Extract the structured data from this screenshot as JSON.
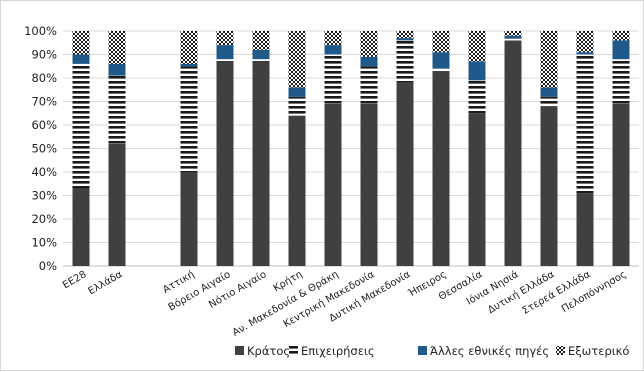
{
  "colors": {
    "krátos": "#404040",
    "epicheiriseis": "#1a1a1a",
    "alles": "#1f5a8a",
    "exoteriko": "#1a1a1a",
    "grid": "#d9d9d9",
    "axis": "#bfbfbf"
  },
  "chart_data": {
    "type": "bar",
    "stacked": true,
    "ylim": [
      0,
      100
    ],
    "yticks": [
      "0%",
      "10%",
      "20%",
      "30%",
      "40%",
      "50%",
      "60%",
      "70%",
      "80%",
      "90%",
      "100%"
    ],
    "grid": true,
    "legend_position": "bottom-right",
    "categories": [
      "ΕΕ28",
      "Ελλάδα",
      "",
      "Αττική",
      "Βόρειο Αιγαίο",
      "Νότιο Αιγαίο",
      "Κρήτη",
      "Αν. Μακεδονία & Θράκη",
      "Κεντρική Μακεδονία",
      "Δυτική Μακεδονία",
      "Ήπειρος",
      "Θεσσαλία",
      "Ιόνια Νησιά",
      "Δυτική Ελλάδα",
      "Στερεά Ελλάδα",
      "Πελοπόννησος"
    ],
    "series": [
      {
        "name": "Κράτος",
        "pattern": "solid",
        "values": [
          33,
          52,
          0,
          40,
          87,
          87,
          64,
          69,
          69,
          78,
          83,
          65,
          96,
          68,
          31,
          69
        ]
      },
      {
        "name": "Επιχειρήσεις",
        "pattern": "hstripes",
        "values": [
          53,
          29,
          0,
          45,
          1,
          1,
          8,
          21,
          16,
          18,
          1,
          14,
          1,
          4,
          59,
          19
        ]
      },
      {
        "name": "Άλλες εθνικές πηγές",
        "pattern": "solid",
        "values": [
          4,
          5,
          0,
          1,
          6,
          4,
          4,
          4,
          4,
          1,
          7,
          8,
          1,
          4,
          1,
          8
        ]
      },
      {
        "name": "Εξωτερικό",
        "pattern": "checker",
        "values": [
          10,
          14,
          0,
          14,
          6,
          8,
          24,
          6,
          11,
          3,
          9,
          13,
          2,
          24,
          9,
          4
        ]
      }
    ]
  }
}
